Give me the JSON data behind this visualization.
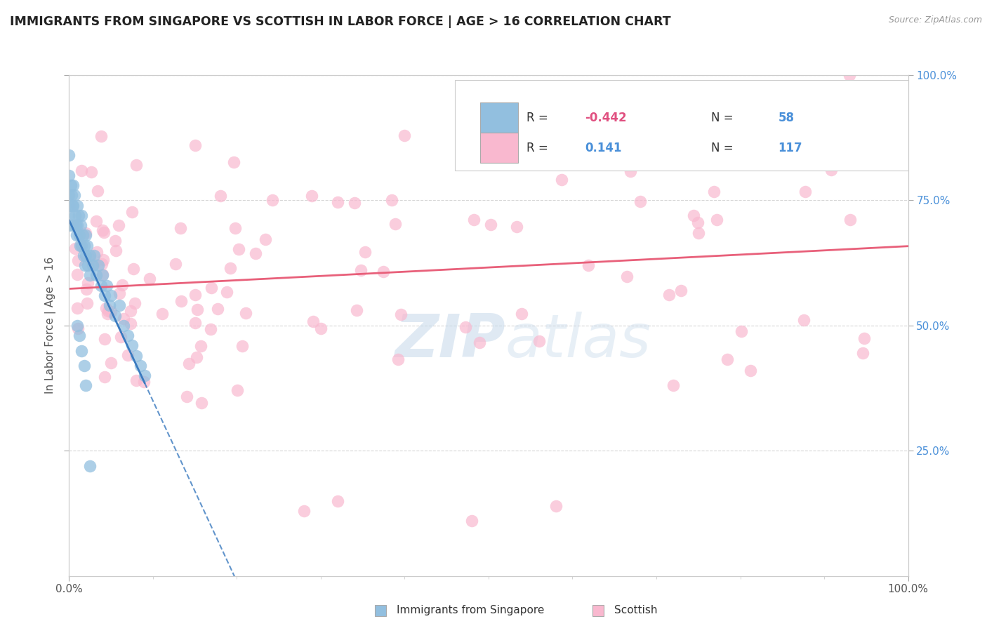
{
  "title": "IMMIGRANTS FROM SINGAPORE VS SCOTTISH IN LABOR FORCE | AGE > 16 CORRELATION CHART",
  "source_text": "Source: ZipAtlas.com",
  "ylabel": "In Labor Force | Age > 16",
  "xlim": [
    0.0,
    1.0
  ],
  "ylim": [
    0.0,
    1.0
  ],
  "singapore_color": "#92bfdf",
  "scottish_color": "#f9b8cf",
  "singapore_line_color": "#3a7abf",
  "scottish_line_color": "#e8607a",
  "singapore_r": -0.442,
  "singapore_n": 58,
  "scottish_r": 0.141,
  "scottish_n": 117,
  "legend_label_singapore": "Immigrants from Singapore",
  "legend_label_scottish": "Scottish",
  "watermark_part1": "ZIP",
  "watermark_part2": "atlas",
  "background_color": "#ffffff",
  "grid_color": "#cccccc",
  "title_color": "#222222",
  "axis_label_color": "#555555",
  "tick_color_blue": "#4a90d9",
  "tick_color_dark": "#555555"
}
